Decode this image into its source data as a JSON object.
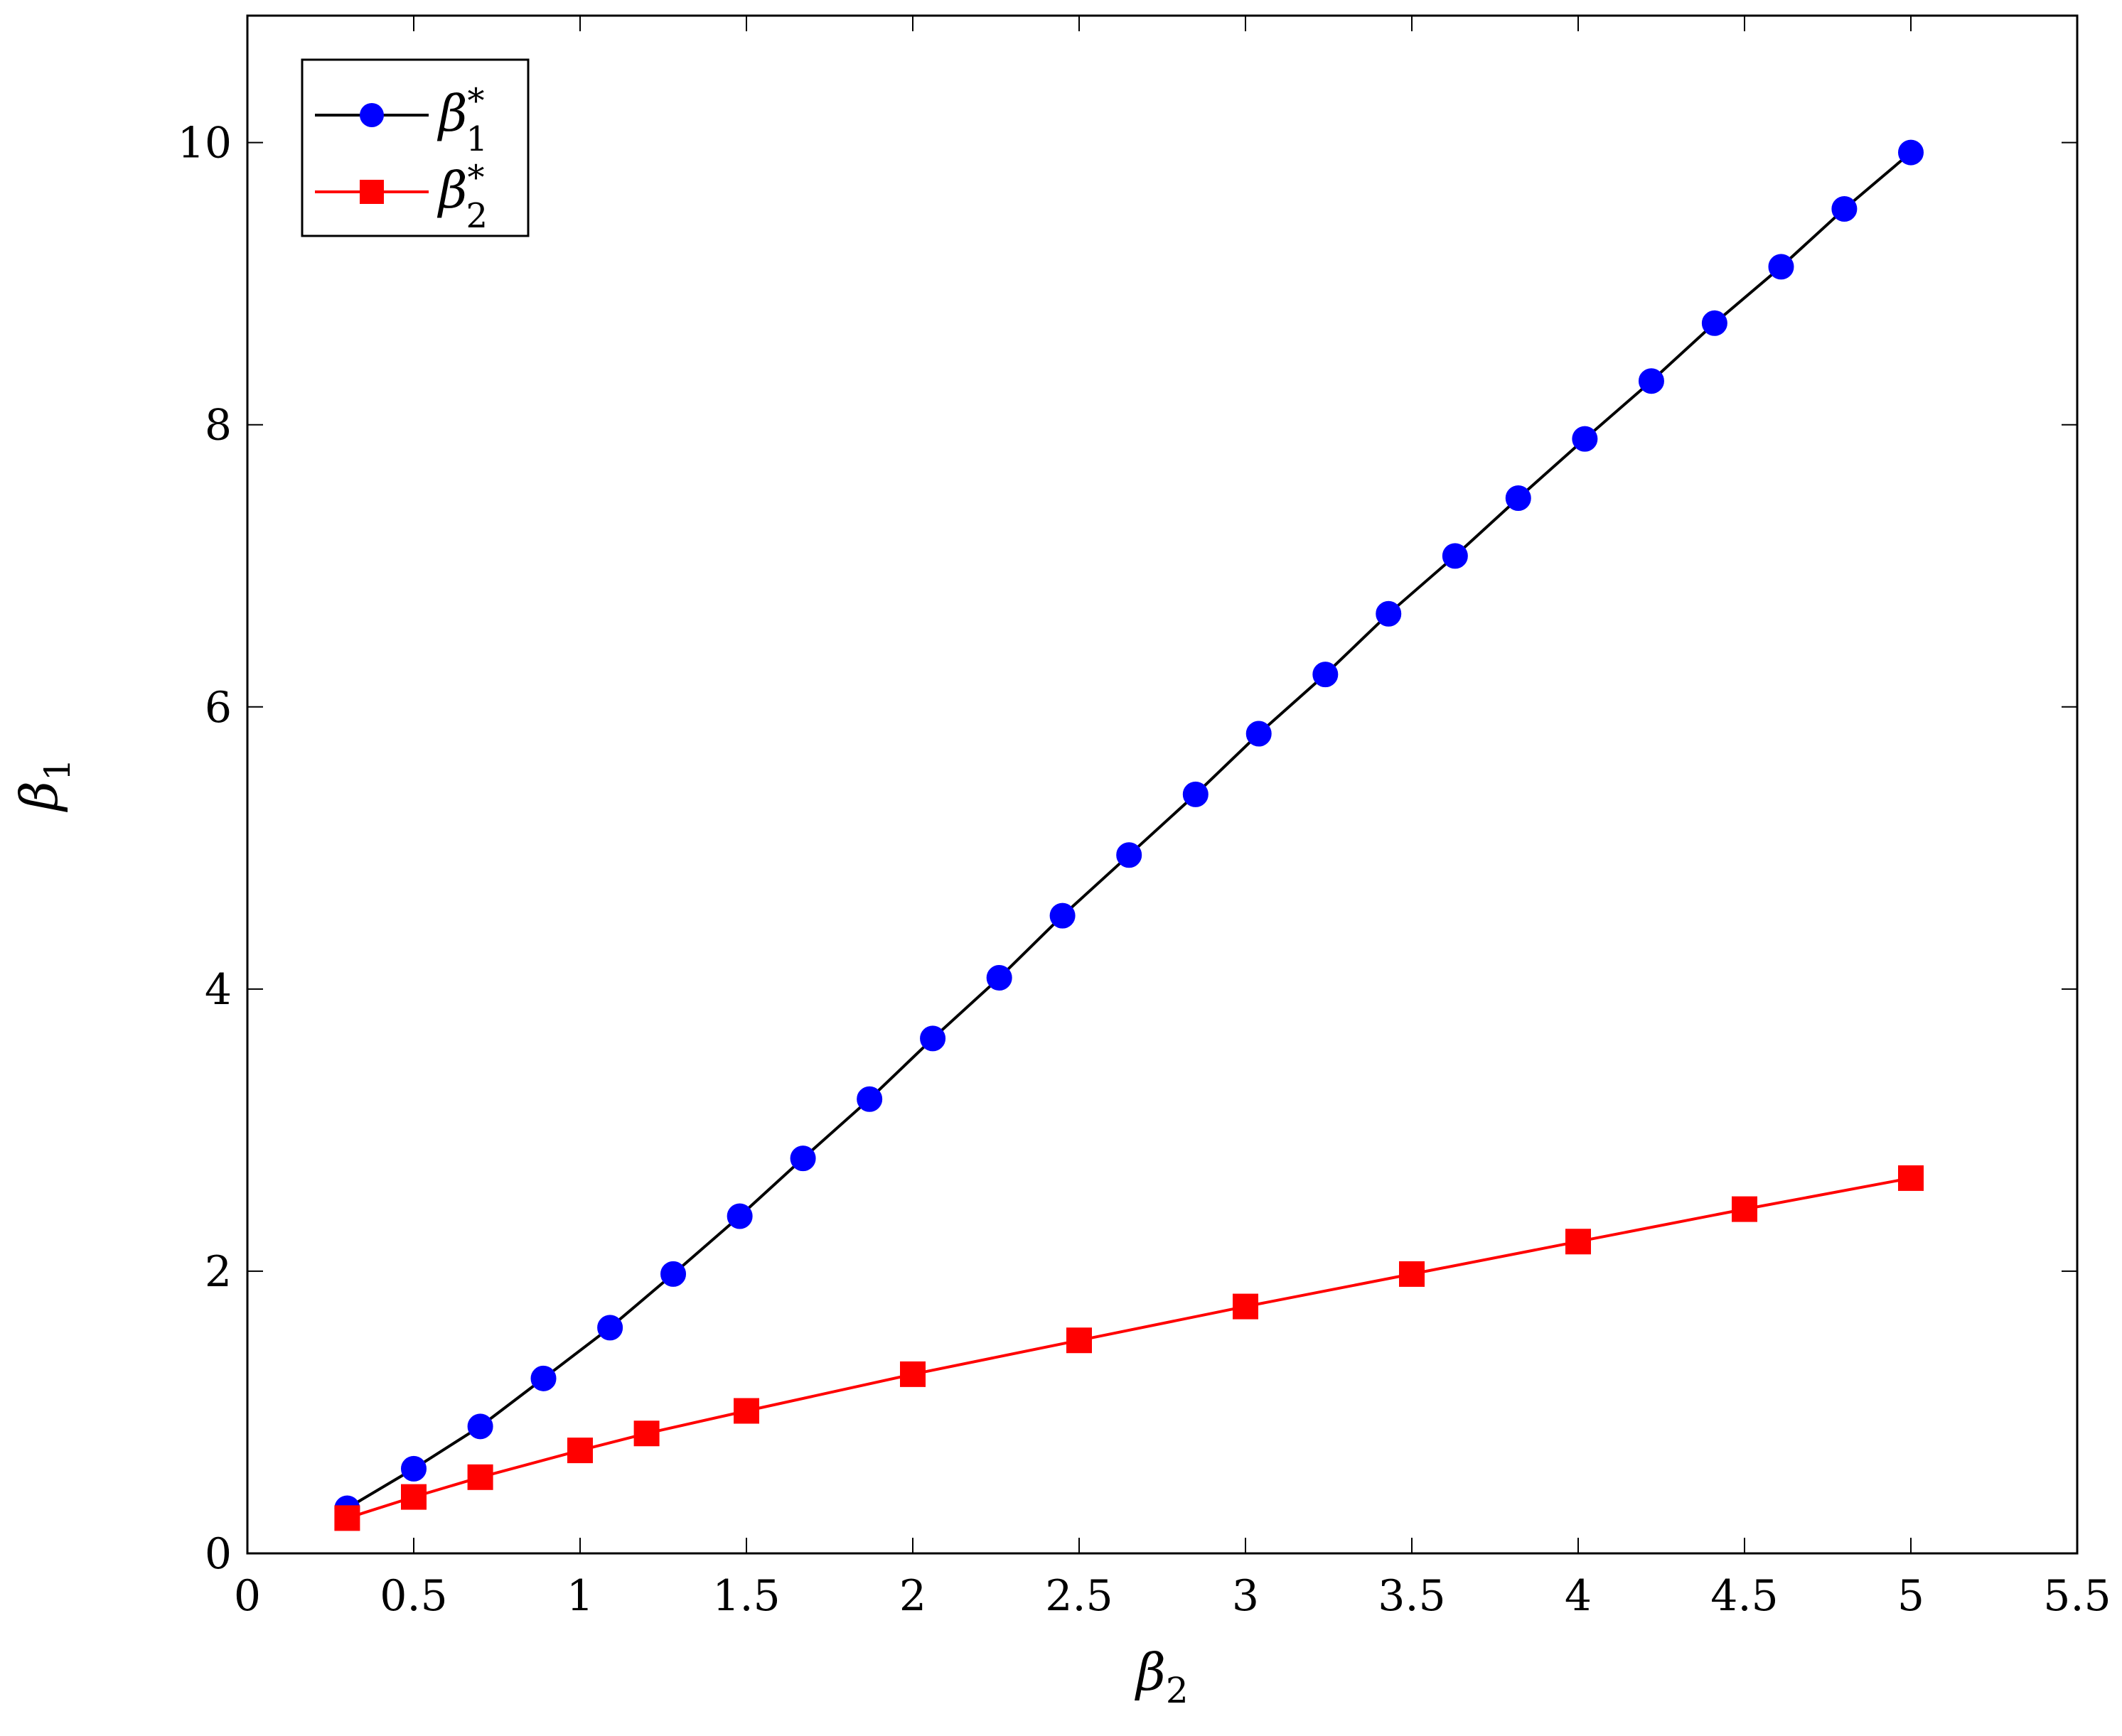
{
  "chart_data": {
    "type": "line",
    "title": "",
    "xlabel": {
      "base": "β",
      "sub": "2"
    },
    "ylabel": {
      "base": "β",
      "sub": "1"
    },
    "xlim": [
      0,
      5.5
    ],
    "ylim": [
      0,
      10.9
    ],
    "xticks": [
      0,
      0.5,
      1,
      1.5,
      2,
      2.5,
      3,
      3.5,
      4,
      4.5,
      5,
      5.5
    ],
    "xtick_labels": [
      "0",
      "0.5",
      "1",
      "1.5",
      "2",
      "2.5",
      "3",
      "3.5",
      "4",
      "4.5",
      "5",
      "5.5"
    ],
    "yticks": [
      0,
      2,
      4,
      6,
      8,
      10
    ],
    "ytick_labels": [
      "0",
      "2",
      "4",
      "6",
      "8",
      "10"
    ],
    "grid": false,
    "legend_position": "top-left",
    "series": [
      {
        "name": {
          "base": "β",
          "sub": "1",
          "sup": "*"
        },
        "line_color": "#000000",
        "marker_color": "#0000ff",
        "marker": "circle",
        "x": [
          0.3,
          0.5,
          0.7,
          0.89,
          1.09,
          1.28,
          1.48,
          1.67,
          1.87,
          2.06,
          2.26,
          2.45,
          2.65,
          2.85,
          3.04,
          3.24,
          3.43,
          3.63,
          3.82,
          4.02,
          4.22,
          4.41,
          4.61,
          4.8,
          5.0
        ],
        "y": [
          0.32,
          0.6,
          0.9,
          1.24,
          1.6,
          1.98,
          2.39,
          2.8,
          3.22,
          3.65,
          4.08,
          4.52,
          4.95,
          5.38,
          5.81,
          6.23,
          6.66,
          7.07,
          7.48,
          7.9,
          8.31,
          8.72,
          9.12,
          9.53,
          9.93
        ]
      },
      {
        "name": {
          "base": "β",
          "sub": "2",
          "sup": "*"
        },
        "line_color": "#ff0000",
        "marker_color": "#ff0000",
        "marker": "square",
        "x": [
          0.3,
          0.5,
          0.7,
          1.0,
          1.2,
          1.5,
          2.0,
          2.5,
          3.0,
          3.5,
          4.0,
          4.5,
          5.0
        ],
        "y": [
          0.25,
          0.4,
          0.54,
          0.73,
          0.85,
          1.01,
          1.27,
          1.51,
          1.75,
          1.98,
          2.21,
          2.44,
          2.66
        ]
      }
    ]
  }
}
